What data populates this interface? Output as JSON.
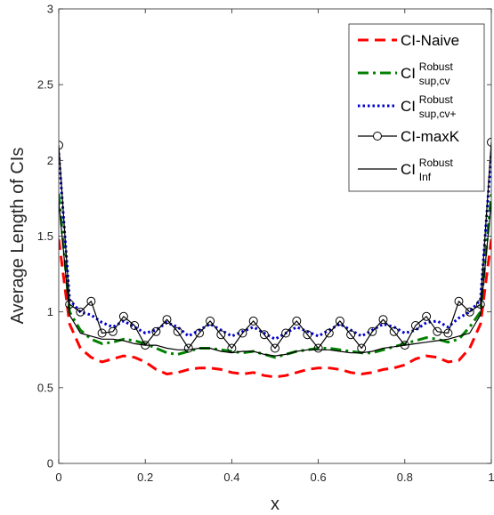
{
  "chart_data": {
    "type": "line",
    "title": "",
    "xlabel": "x",
    "ylabel": "Average Length of CIs",
    "xlim": [
      0,
      1
    ],
    "ylim": [
      0,
      3
    ],
    "xticks": [
      "0",
      "0.2",
      "0.4",
      "0.6",
      "0.8",
      "1"
    ],
    "yticks": [
      "0",
      "0.5",
      "1",
      "1.5",
      "2",
      "2.5",
      "3"
    ],
    "grid": false,
    "legend_position": "top-right",
    "series": [
      {
        "name": "CI-Naive",
        "legend_main": "CI-Naive",
        "legend_sup": "",
        "legend_sub": "",
        "color": "#ff0000",
        "style": "dashed",
        "marker": "none",
        "x": [
          0,
          0.025,
          0.05,
          0.075,
          0.1,
          0.125,
          0.15,
          0.175,
          0.2,
          0.225,
          0.25,
          0.275,
          0.3,
          0.325,
          0.35,
          0.375,
          0.4,
          0.425,
          0.45,
          0.475,
          0.5,
          0.525,
          0.55,
          0.575,
          0.6,
          0.625,
          0.65,
          0.675,
          0.7,
          0.725,
          0.75,
          0.775,
          0.8,
          0.825,
          0.85,
          0.875,
          0.9,
          0.925,
          0.95,
          0.975,
          1
        ],
        "y": [
          1.48,
          0.92,
          0.76,
          0.7,
          0.67,
          0.69,
          0.71,
          0.7,
          0.67,
          0.62,
          0.59,
          0.6,
          0.62,
          0.63,
          0.63,
          0.62,
          0.6,
          0.59,
          0.6,
          0.58,
          0.57,
          0.58,
          0.6,
          0.62,
          0.63,
          0.63,
          0.62,
          0.6,
          0.59,
          0.6,
          0.62,
          0.63,
          0.65,
          0.69,
          0.71,
          0.7,
          0.67,
          0.68,
          0.76,
          0.92,
          1.48
        ]
      },
      {
        "name": "CI^{Robust}_{sup,cv}",
        "legend_main": "CI",
        "legend_sup": "Robust",
        "legend_sub": "sup,cv",
        "color": "#008000",
        "style": "dashdot",
        "marker": "none",
        "x": [
          0,
          0.025,
          0.05,
          0.075,
          0.1,
          0.125,
          0.15,
          0.175,
          0.2,
          0.225,
          0.25,
          0.275,
          0.3,
          0.325,
          0.35,
          0.375,
          0.4,
          0.425,
          0.45,
          0.475,
          0.5,
          0.525,
          0.55,
          0.575,
          0.6,
          0.625,
          0.65,
          0.675,
          0.7,
          0.725,
          0.75,
          0.775,
          0.8,
          0.825,
          0.85,
          0.875,
          0.9,
          0.925,
          0.95,
          0.975,
          1
        ],
        "y": [
          1.78,
          1.0,
          0.88,
          0.82,
          0.79,
          0.8,
          0.82,
          0.81,
          0.79,
          0.76,
          0.73,
          0.72,
          0.74,
          0.76,
          0.76,
          0.75,
          0.74,
          0.73,
          0.74,
          0.72,
          0.7,
          0.72,
          0.74,
          0.75,
          0.76,
          0.76,
          0.75,
          0.74,
          0.73,
          0.73,
          0.75,
          0.77,
          0.79,
          0.81,
          0.83,
          0.82,
          0.8,
          0.82,
          0.9,
          1.0,
          1.78
        ]
      },
      {
        "name": "CI^{Robust}_{sup,cv+}",
        "legend_main": "CI",
        "legend_sup": "Robust",
        "legend_sub": "sup,cv+",
        "color": "#0000cc",
        "style": "dotted",
        "marker": "none",
        "x": [
          0,
          0.025,
          0.05,
          0.075,
          0.1,
          0.125,
          0.15,
          0.175,
          0.2,
          0.225,
          0.25,
          0.275,
          0.3,
          0.325,
          0.35,
          0.375,
          0.4,
          0.425,
          0.45,
          0.475,
          0.5,
          0.525,
          0.55,
          0.575,
          0.6,
          0.625,
          0.65,
          0.675,
          0.7,
          0.725,
          0.75,
          0.775,
          0.8,
          0.825,
          0.85,
          0.875,
          0.9,
          0.925,
          0.95,
          0.975,
          1
        ],
        "y": [
          2.05,
          1.08,
          1.0,
          0.98,
          0.93,
          0.9,
          0.94,
          0.9,
          0.86,
          0.88,
          0.93,
          0.9,
          0.84,
          0.88,
          0.92,
          0.88,
          0.84,
          0.87,
          0.9,
          0.86,
          0.82,
          0.86,
          0.9,
          0.87,
          0.84,
          0.88,
          0.92,
          0.88,
          0.84,
          0.88,
          0.92,
          0.9,
          0.86,
          0.88,
          0.93,
          0.94,
          0.9,
          0.96,
          1.0,
          1.08,
          2.05
        ]
      },
      {
        "name": "CI-maxK",
        "legend_main": "CI-maxK",
        "legend_sup": "",
        "legend_sub": "",
        "color": "#000000",
        "style": "solid",
        "marker": "circle",
        "x": [
          0,
          0.025,
          0.05,
          0.075,
          0.1,
          0.125,
          0.15,
          0.175,
          0.2,
          0.225,
          0.25,
          0.275,
          0.3,
          0.325,
          0.35,
          0.375,
          0.4,
          0.425,
          0.45,
          0.475,
          0.5,
          0.525,
          0.55,
          0.575,
          0.6,
          0.625,
          0.65,
          0.675,
          0.7,
          0.725,
          0.75,
          0.775,
          0.8,
          0.825,
          0.85,
          0.875,
          0.9,
          0.925,
          0.95,
          0.975,
          1
        ],
        "y": [
          2.1,
          1.05,
          1.0,
          1.07,
          0.86,
          0.87,
          0.97,
          0.91,
          0.78,
          0.87,
          0.95,
          0.87,
          0.76,
          0.86,
          0.94,
          0.85,
          0.76,
          0.86,
          0.94,
          0.85,
          0.76,
          0.86,
          0.94,
          0.85,
          0.76,
          0.86,
          0.94,
          0.85,
          0.76,
          0.87,
          0.95,
          0.87,
          0.78,
          0.91,
          0.97,
          0.87,
          0.86,
          1.07,
          1.0,
          1.05,
          2.12
        ]
      },
      {
        "name": "CI^{Robust}_{Inf}",
        "legend_main": "CI",
        "legend_sup": "Robust",
        "legend_sub": "Inf",
        "color": "#000000",
        "style": "solid",
        "marker": "none",
        "x": [
          0,
          0.025,
          0.05,
          0.075,
          0.1,
          0.125,
          0.15,
          0.175,
          0.2,
          0.225,
          0.25,
          0.275,
          0.3,
          0.325,
          0.35,
          0.375,
          0.4,
          0.425,
          0.45,
          0.475,
          0.5,
          0.525,
          0.55,
          0.575,
          0.6,
          0.625,
          0.65,
          0.675,
          0.7,
          0.725,
          0.75,
          0.775,
          0.8,
          0.825,
          0.85,
          0.875,
          0.9,
          0.925,
          0.95,
          0.975,
          1
        ],
        "y": [
          1.73,
          0.98,
          0.86,
          0.84,
          0.82,
          0.82,
          0.81,
          0.79,
          0.78,
          0.78,
          0.76,
          0.75,
          0.75,
          0.76,
          0.76,
          0.74,
          0.73,
          0.74,
          0.74,
          0.72,
          0.71,
          0.72,
          0.74,
          0.75,
          0.75,
          0.75,
          0.74,
          0.73,
          0.73,
          0.74,
          0.76,
          0.77,
          0.78,
          0.79,
          0.8,
          0.81,
          0.82,
          0.84,
          0.86,
          0.98,
          1.73
        ]
      }
    ]
  }
}
